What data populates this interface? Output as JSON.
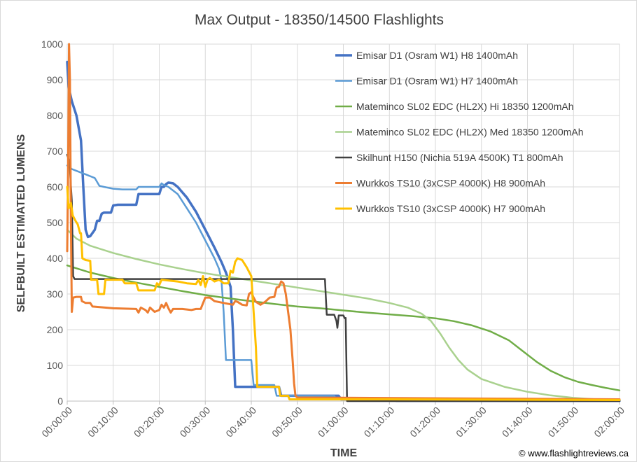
{
  "copyright": "© www.flashlightreviews.ca",
  "chart_data": {
    "type": "line",
    "title": "Max Output - 18350/14500 Flashlights",
    "xlabel": "TIME",
    "ylabel": "SELFBUILT ESTIMATED LUMENS",
    "xlim": [
      0,
      120
    ],
    "ylim": [
      0,
      1000
    ],
    "yticks": [
      0,
      100,
      200,
      300,
      400,
      500,
      600,
      700,
      800,
      900,
      1000
    ],
    "xtick_values": [
      0,
      10,
      20,
      30,
      40,
      50,
      60,
      70,
      80,
      90,
      100,
      110,
      120
    ],
    "xtick_labels": [
      "00:00:00",
      "00:10:00",
      "00:20:00",
      "00:30:00",
      "00:40:00",
      "00:50:00",
      "01:00:00",
      "01:10:00",
      "01:20:00",
      "01:30:00",
      "01:40:00",
      "01:50:00",
      "02:00:00"
    ],
    "grid": true,
    "legend": "top-right",
    "x_unit": "minutes",
    "series": [
      {
        "name": "Emisar D1 (Osram W1) H8 1400mAh",
        "color": "#4472c4",
        "width": 3.5,
        "points": [
          [
            0,
            950
          ],
          [
            0.3,
            880
          ],
          [
            1,
            840
          ],
          [
            2,
            800
          ],
          [
            3,
            730
          ],
          [
            3.5,
            600
          ],
          [
            4,
            480
          ],
          [
            4.5,
            460
          ],
          [
            5,
            462
          ],
          [
            6,
            480
          ],
          [
            6.5,
            505
          ],
          [
            7,
            505
          ],
          [
            7.5,
            525
          ],
          [
            8,
            528
          ],
          [
            9.5,
            528
          ],
          [
            10,
            548
          ],
          [
            11,
            550
          ],
          [
            15,
            550
          ],
          [
            15.5,
            580
          ],
          [
            20,
            580
          ],
          [
            20.5,
            600
          ],
          [
            21,
            600
          ],
          [
            21.5,
            608
          ],
          [
            22,
            612
          ],
          [
            23,
            610
          ],
          [
            24,
            600
          ],
          [
            26,
            570
          ],
          [
            28,
            530
          ],
          [
            30,
            480
          ],
          [
            32,
            430
          ],
          [
            33.5,
            390
          ],
          [
            34.5,
            360
          ],
          [
            35,
            340
          ],
          [
            35.5,
            320
          ],
          [
            36,
            200
          ],
          [
            36.5,
            40
          ],
          [
            40,
            40
          ],
          [
            40.5,
            40
          ],
          [
            46,
            40
          ],
          [
            46.5,
            15
          ],
          [
            59,
            15
          ],
          [
            59.5,
            5
          ],
          [
            71,
            5
          ],
          [
            71.5,
            1
          ],
          [
            120,
            1
          ]
        ]
      },
      {
        "name": "Emisar D1 (Osram W1) H7 1400mAh",
        "color": "#5b9bd5",
        "width": 2.5,
        "points": [
          [
            0,
            660
          ],
          [
            1,
            650
          ],
          [
            2,
            645
          ],
          [
            4,
            635
          ],
          [
            6,
            625
          ],
          [
            7,
            603
          ],
          [
            8,
            600
          ],
          [
            10,
            595
          ],
          [
            12,
            593
          ],
          [
            15,
            593
          ],
          [
            15.5,
            600
          ],
          [
            20,
            600
          ],
          [
            20.5,
            610
          ],
          [
            21,
            605
          ],
          [
            22,
            600
          ],
          [
            24,
            580
          ],
          [
            26,
            540
          ],
          [
            28,
            500
          ],
          [
            30,
            450
          ],
          [
            32,
            400
          ],
          [
            33,
            370
          ],
          [
            33.5,
            340
          ],
          [
            34,
            250
          ],
          [
            34.5,
            115
          ],
          [
            40,
            115
          ],
          [
            40.5,
            45
          ],
          [
            45,
            45
          ],
          [
            45.5,
            15
          ],
          [
            58,
            15
          ],
          [
            58.5,
            5
          ],
          [
            70,
            5
          ],
          [
            70.5,
            1
          ],
          [
            120,
            1
          ]
        ]
      },
      {
        "name": "Mateminco SL02 EDC (HL2X) Hi 18350 1200mAh",
        "color": "#70ad47",
        "width": 2.5,
        "points": [
          [
            0,
            380
          ],
          [
            2,
            372
          ],
          [
            5,
            360
          ],
          [
            10,
            345
          ],
          [
            15,
            332
          ],
          [
            20,
            320
          ],
          [
            25,
            308
          ],
          [
            30,
            297
          ],
          [
            35,
            288
          ],
          [
            40,
            280
          ],
          [
            45,
            272
          ],
          [
            50,
            265
          ],
          [
            55,
            260
          ],
          [
            60,
            254
          ],
          [
            65,
            248
          ],
          [
            70,
            243
          ],
          [
            75,
            238
          ],
          [
            80,
            232
          ],
          [
            84,
            224
          ],
          [
            88,
            212
          ],
          [
            92,
            195
          ],
          [
            96,
            170
          ],
          [
            99,
            140
          ],
          [
            102,
            110
          ],
          [
            105,
            85
          ],
          [
            108,
            67
          ],
          [
            111,
            54
          ],
          [
            114,
            45
          ],
          [
            117,
            37
          ],
          [
            120,
            30
          ]
        ]
      },
      {
        "name": "Mateminco SL02 EDC (HL2X) Med 18350 1200mAh",
        "color": "#a9d18e",
        "width": 2.5,
        "points": [
          [
            0,
            480
          ],
          [
            2,
            455
          ],
          [
            5,
            435
          ],
          [
            10,
            415
          ],
          [
            15,
            398
          ],
          [
            20,
            383
          ],
          [
            25,
            370
          ],
          [
            30,
            358
          ],
          [
            35,
            348
          ],
          [
            40,
            338
          ],
          [
            45,
            328
          ],
          [
            50,
            318
          ],
          [
            55,
            308
          ],
          [
            60,
            298
          ],
          [
            65,
            288
          ],
          [
            70,
            275
          ],
          [
            74,
            262
          ],
          [
            77,
            245
          ],
          [
            79,
            225
          ],
          [
            81,
            190
          ],
          [
            83,
            150
          ],
          [
            85,
            115
          ],
          [
            87,
            88
          ],
          [
            90,
            62
          ],
          [
            95,
            40
          ],
          [
            100,
            26
          ],
          [
            105,
            16
          ],
          [
            110,
            9
          ],
          [
            115,
            5
          ],
          [
            120,
            3
          ]
        ]
      },
      {
        "name": "Skilhunt H150 (Nichia 519A 4500K) T1 800mAh",
        "color": "#404040",
        "width": 2.5,
        "points": [
          [
            0,
            690
          ],
          [
            0.5,
            670
          ],
          [
            1,
            560
          ],
          [
            1.3,
            350
          ],
          [
            1.6,
            342
          ],
          [
            56,
            342
          ],
          [
            56.2,
            290
          ],
          [
            56.4,
            242
          ],
          [
            58,
            242
          ],
          [
            58.5,
            225
          ],
          [
            58.7,
            205
          ],
          [
            59,
            240
          ],
          [
            60,
            240
          ],
          [
            60.3,
            232
          ],
          [
            60.5,
            233
          ],
          [
            60.8,
            0
          ],
          [
            120,
            0
          ]
        ]
      },
      {
        "name": "Wurkkos TS10 (3xCSP 4000K) H8 900mAh",
        "color": "#ed7d31",
        "width": 3,
        "points": [
          [
            0,
            420
          ],
          [
            0.2,
            650
          ],
          [
            0.4,
            1000
          ],
          [
            0.6,
            900
          ],
          [
            0.8,
            500
          ],
          [
            1,
            250
          ],
          [
            1.3,
            290
          ],
          [
            2,
            292
          ],
          [
            3,
            292
          ],
          [
            3.2,
            280
          ],
          [
            4,
            275
          ],
          [
            5,
            275
          ],
          [
            5.5,
            265
          ],
          [
            10,
            260
          ],
          [
            15,
            258
          ],
          [
            15.5,
            248
          ],
          [
            16,
            262
          ],
          [
            17,
            255
          ],
          [
            17.5,
            248
          ],
          [
            18,
            262
          ],
          [
            19,
            250
          ],
          [
            20,
            255
          ],
          [
            20.5,
            270
          ],
          [
            21,
            262
          ],
          [
            21.5,
            275
          ],
          [
            22,
            260
          ],
          [
            22.5,
            248
          ],
          [
            23,
            258
          ],
          [
            25,
            258
          ],
          [
            27,
            255
          ],
          [
            28,
            258
          ],
          [
            29,
            258
          ],
          [
            30,
            290
          ],
          [
            31,
            290
          ],
          [
            32,
            280
          ],
          [
            34,
            275
          ],
          [
            36,
            270
          ],
          [
            36.5,
            280
          ],
          [
            37,
            278
          ],
          [
            38,
            270
          ],
          [
            39,
            268
          ],
          [
            39.5,
            300
          ],
          [
            40,
            305
          ],
          [
            40.5,
            290
          ],
          [
            41,
            278
          ],
          [
            42,
            270
          ],
          [
            43,
            278
          ],
          [
            44,
            290
          ],
          [
            45,
            292
          ],
          [
            45.5,
            318
          ],
          [
            46,
            320
          ],
          [
            46.5,
            335
          ],
          [
            47,
            330
          ],
          [
            47.5,
            300
          ],
          [
            48,
            250
          ],
          [
            48.5,
            200
          ],
          [
            49,
            110
          ],
          [
            49.3,
            50
          ],
          [
            49.6,
            15
          ],
          [
            50,
            10
          ],
          [
            120,
            5
          ]
        ]
      },
      {
        "name": "Wurkkos TS10 (3xCSP 4000K) H7 900mAh",
        "color": "#ffc000",
        "width": 3,
        "points": [
          [
            0,
            600
          ],
          [
            0.3,
            540
          ],
          [
            0.8,
            555
          ],
          [
            1.2,
            520
          ],
          [
            1.8,
            505
          ],
          [
            2.3,
            495
          ],
          [
            2.8,
            470
          ],
          [
            3,
            470
          ],
          [
            3.3,
            400
          ],
          [
            4,
            395
          ],
          [
            5,
            393
          ],
          [
            5.2,
            340
          ],
          [
            6.5,
            340
          ],
          [
            6.8,
            300
          ],
          [
            8,
            300
          ],
          [
            8.3,
            340
          ],
          [
            12,
            340
          ],
          [
            12.5,
            330
          ],
          [
            15,
            330
          ],
          [
            15.5,
            310
          ],
          [
            19,
            310
          ],
          [
            19.5,
            330
          ],
          [
            20,
            325
          ],
          [
            20.5,
            340
          ],
          [
            24,
            335
          ],
          [
            26,
            330
          ],
          [
            28,
            328
          ],
          [
            28.5,
            340
          ],
          [
            29,
            325
          ],
          [
            29.5,
            350
          ],
          [
            30,
            320
          ],
          [
            30.5,
            340
          ],
          [
            31,
            345
          ],
          [
            32,
            335
          ],
          [
            33,
            340
          ],
          [
            34,
            330
          ],
          [
            35,
            330
          ],
          [
            35.5,
            365
          ],
          [
            36,
            360
          ],
          [
            36.5,
            390
          ],
          [
            37,
            400
          ],
          [
            38,
            395
          ],
          [
            38.5,
            385
          ],
          [
            39,
            375
          ],
          [
            40,
            350
          ],
          [
            40.5,
            250
          ],
          [
            41,
            150
          ],
          [
            41.3,
            40
          ],
          [
            46,
            40
          ],
          [
            46.3,
            15
          ],
          [
            48,
            15
          ],
          [
            48.3,
            5
          ],
          [
            70,
            5
          ],
          [
            120,
            3
          ]
        ]
      }
    ]
  }
}
